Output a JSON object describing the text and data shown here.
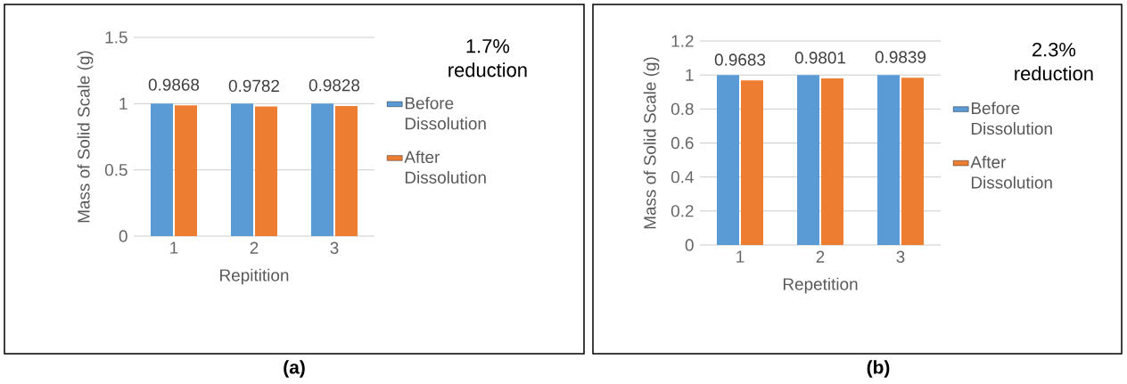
{
  "chart_data": [
    {
      "type": "bar",
      "categories": [
        "1",
        "2",
        "3"
      ],
      "xlabel": "Repitition",
      "ylabel": "Mass of Solid Scale (g)",
      "ylim": [
        0,
        1.5
      ],
      "yticks": [
        0,
        0.5,
        1,
        1.5
      ],
      "grid": "y",
      "legend": "right",
      "series": [
        {
          "name": "Before Dissolution",
          "color": "#5b9bd5",
          "values": [
            1,
            1,
            1
          ]
        },
        {
          "name": "After Dissolution",
          "color": "#ed7d31",
          "values": [
            0.9868,
            0.9782,
            0.9828
          ],
          "value_labels": [
            "0.9868",
            "0.9782",
            "0.9828"
          ]
        }
      ],
      "annotations": [
        "1.7% reduction",
        "(a)"
      ]
    },
    {
      "type": "bar",
      "categories": [
        "1",
        "2",
        "3"
      ],
      "xlabel": "Repetition",
      "ylabel": "Mass of Solid Scale (g)",
      "ylim": [
        0,
        1.2
      ],
      "yticks": [
        0,
        0.2,
        0.4,
        0.6,
        0.8,
        1,
        1.2
      ],
      "grid": "y",
      "legend": "right",
      "series": [
        {
          "name": "Before Dissolution",
          "color": "#5b9bd5",
          "values": [
            1,
            1,
            1
          ]
        },
        {
          "name": "After Dissolution",
          "color": "#ed7d31",
          "values": [
            0.9683,
            0.9801,
            0.9839
          ],
          "value_labels": [
            "0.9683",
            "0.9801",
            "0.9839"
          ]
        }
      ],
      "annotations": [
        "2.3% reduction",
        "(b)"
      ]
    }
  ]
}
